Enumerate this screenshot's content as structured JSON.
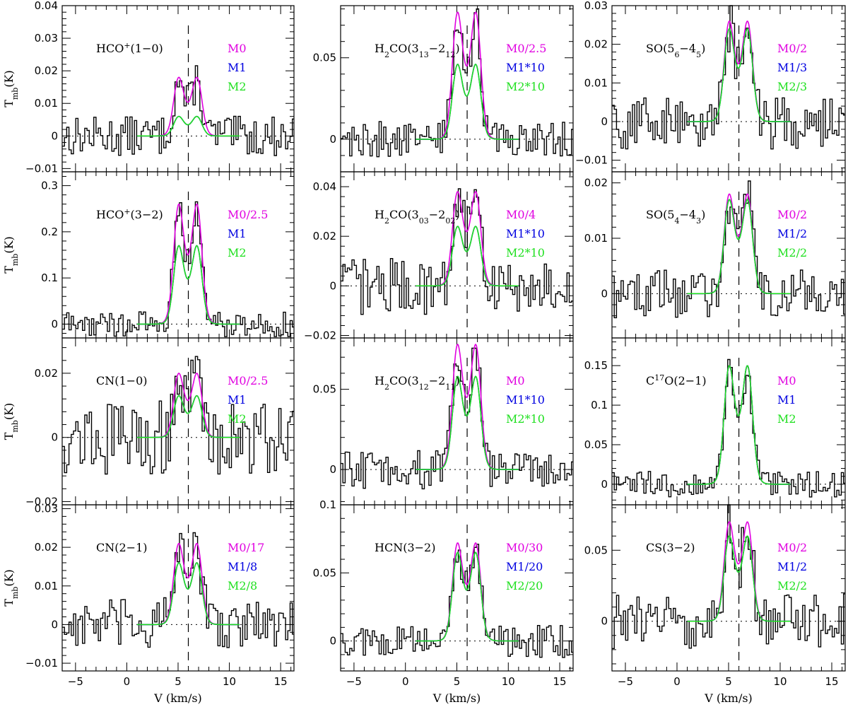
{
  "figure": {
    "xlabel": "V (km/s)",
    "ylabel": "T_mb(K)",
    "xticklabels": [
      "−5",
      "0",
      "5",
      "10",
      "15"
    ],
    "colors": {
      "M0": "#e000e0",
      "M1": "#0000e0",
      "M2": "#20e020",
      "observed": "#000000"
    }
  },
  "chart_data": [
    {
      "type": "line",
      "title": "HCO+(1−0)",
      "label_main": "HCO",
      "label_sup": "+",
      "label_rest": "(1−0)",
      "ylim": [
        -0.011,
        0.04
      ],
      "yticks": [
        -0.01,
        0,
        0.01,
        0.02,
        0.03,
        0.04
      ],
      "ytick_labels": [
        "−0.01",
        "0",
        "0.01",
        "0.02",
        "0.03",
        "0.04"
      ],
      "model_peaks": {
        "M0": 0.018,
        "M1": 0.006,
        "M2": 0.006
      },
      "legend": [
        "M0",
        "M1",
        "M2"
      ],
      "ylabel": "T_mb(K)"
    },
    {
      "type": "line",
      "title": "HCO+(3−2)",
      "label_main": "HCO",
      "label_sup": "+",
      "label_rest": "(3−2)",
      "ylim": [
        -0.03,
        0.33
      ],
      "yticks": [
        0,
        0.1,
        0.2,
        0.3
      ],
      "ytick_labels": [
        "0",
        "0.1",
        "0.2",
        "0.3"
      ],
      "model_peaks": {
        "M0": 0.26,
        "M1": 0.17,
        "M2": 0.17
      },
      "legend": [
        "M0/2.5",
        "M1",
        "M2"
      ],
      "ylabel": "T_mb(K)"
    },
    {
      "type": "line",
      "title": "CN(1−0)",
      "label_main": "CN(1−0)",
      "label_sup": "",
      "label_rest": "",
      "ylim": [
        -0.021,
        0.031
      ],
      "yticks": [
        -0.02,
        0,
        0.02
      ],
      "ytick_labels": [
        "−0.02",
        "0",
        "0.02"
      ],
      "model_peaks": {
        "M0": 0.02,
        "M1": 0.013,
        "M2": 0.013
      },
      "legend": [
        "M0/2.5",
        "M1",
        "M2"
      ],
      "ylabel": "T_mb(K)"
    },
    {
      "type": "line",
      "title": "CN(2−1)",
      "label_main": "CN(2−1)",
      "label_sup": "",
      "label_rest": "",
      "ylim": [
        -0.012,
        0.031
      ],
      "yticks": [
        -0.01,
        0,
        0.01,
        0.02,
        0.03
      ],
      "ytick_labels": [
        "−0.01",
        "0",
        "0.01",
        "0.02",
        "0.03"
      ],
      "model_peaks": {
        "M0": 0.021,
        "M1": 0.016,
        "M2": 0.016
      },
      "legend": [
        "M0/17",
        "M1/8",
        "M2/8"
      ],
      "ylabel": "T_mb(K)"
    },
    {
      "type": "line",
      "title": "H2CO(313−212)",
      "label_main": "H",
      "label_sub1": "2",
      "label_mid": "CO(3",
      "label_sub2": "13",
      "label_mid2": "−2",
      "label_sub3": "12",
      "label_end": ")",
      "ylim": [
        -0.02,
        0.082
      ],
      "yticks": [
        0,
        0.05
      ],
      "ytick_labels": [
        "0",
        "0.05"
      ],
      "model_peaks": {
        "M0": 0.078,
        "M1": 0.046,
        "M2": 0.046
      },
      "legend": [
        "M0/2.5",
        "M1*10",
        "M2*10"
      ],
      "ylabel": ""
    },
    {
      "type": "line",
      "title": "H2CO(303−202)",
      "label_main": "H",
      "label_sub1": "2",
      "label_mid": "CO(3",
      "label_sub2": "03",
      "label_mid2": "−2",
      "label_sub3": "02",
      "label_end": ")",
      "ylim": [
        -0.021,
        0.046
      ],
      "yticks": [
        -0.02,
        0,
        0.02,
        0.04
      ],
      "ytick_labels": [
        "−0.02",
        "0",
        "0.02",
        "0.04"
      ],
      "model_peaks": {
        "M0": 0.038,
        "M1": 0.024,
        "M2": 0.024
      },
      "legend": [
        "M0/4",
        "M1*10",
        "M2*10"
      ],
      "ylabel": ""
    },
    {
      "type": "line",
      "title": "H2CO(312−211)",
      "label_main": "H",
      "label_sub1": "2",
      "label_mid": "CO(3",
      "label_sub2": "12",
      "label_mid2": "−2",
      "label_sub3": "11",
      "label_end": ")",
      "ylim": [
        -0.022,
        0.082
      ],
      "yticks": [
        0,
        0.05
      ],
      "ytick_labels": [
        "0",
        "0.05"
      ],
      "model_peaks": {
        "M0": 0.078,
        "M1": 0.058,
        "M2": 0.058
      },
      "legend": [
        "M0",
        "M1*10",
        "M2*10"
      ],
      "ylabel": ""
    },
    {
      "type": "line",
      "title": "HCN(3−2)",
      "label_main": "HCN(3−2)",
      "label_sup": "",
      "label_rest": "",
      "ylim": [
        -0.022,
        0.1
      ],
      "yticks": [
        0,
        0.05,
        0.1
      ],
      "ytick_labels": [
        "0",
        "0.05",
        "0.1"
      ],
      "model_peaks": {
        "M0": 0.072,
        "M1": 0.065,
        "M2": 0.065
      },
      "legend": [
        "M0/30",
        "M1/20",
        "M2/20"
      ],
      "ylabel": ""
    },
    {
      "type": "line",
      "title": "SO(56−45)",
      "label_main": "SO(5",
      "label_sub1": "6",
      "label_mid": "−4",
      "label_sub2": "5",
      "label_end": ")",
      "ylim": [
        -0.013,
        0.03
      ],
      "yticks": [
        -0.01,
        0,
        0.01,
        0.02,
        0.03
      ],
      "ytick_labels": [
        "−0.01",
        "0",
        "0.01",
        "0.02",
        "0.03"
      ],
      "model_peaks": {
        "M0": 0.026,
        "M1": 0.024,
        "M2": 0.024
      },
      "legend": [
        "M0/2",
        "M1/3",
        "M2/3"
      ],
      "ylabel": ""
    },
    {
      "type": "line",
      "title": "SO(54−43)",
      "label_main": "SO(5",
      "label_sub1": "4",
      "label_mid": "−4",
      "label_sub2": "3",
      "label_end": ")",
      "ylim": [
        -0.008,
        0.022
      ],
      "yticks": [
        0,
        0.01,
        0.02
      ],
      "ytick_labels": [
        "0",
        "0.01",
        "0.02"
      ],
      "model_peaks": {
        "M0": 0.018,
        "M1": 0.017,
        "M2": 0.017
      },
      "legend": [
        "M0/2",
        "M1/2",
        "M2/2"
      ],
      "ylabel": ""
    },
    {
      "type": "line",
      "title": "C17O(2−1)",
      "label_main": "C",
      "label_sup": "17",
      "label_rest": "O(2−1)",
      "ylim": [
        -0.026,
        0.185
      ],
      "yticks": [
        0,
        0.05,
        0.1,
        0.15
      ],
      "ytick_labels": [
        "0",
        "0.05",
        "0.1",
        "0.15"
      ],
      "model_peaks": {
        "M0": 0.15,
        "M1": 0.15,
        "M2": 0.15
      },
      "legend": [
        "M0",
        "M1",
        "M2"
      ],
      "ylabel": ""
    },
    {
      "type": "line",
      "title": "CS(3−2)",
      "label_main": "CS(3−2)",
      "label_sup": "",
      "label_rest": "",
      "ylim": [
        -0.035,
        0.082
      ],
      "yticks": [
        0,
        0.05
      ],
      "ytick_labels": [
        "0",
        "0.05"
      ],
      "model_peaks": {
        "M0": 0.07,
        "M1": 0.06,
        "M2": 0.06
      },
      "legend": [
        "M0/2",
        "M1/2",
        "M2/2"
      ],
      "ylabel": ""
    }
  ]
}
